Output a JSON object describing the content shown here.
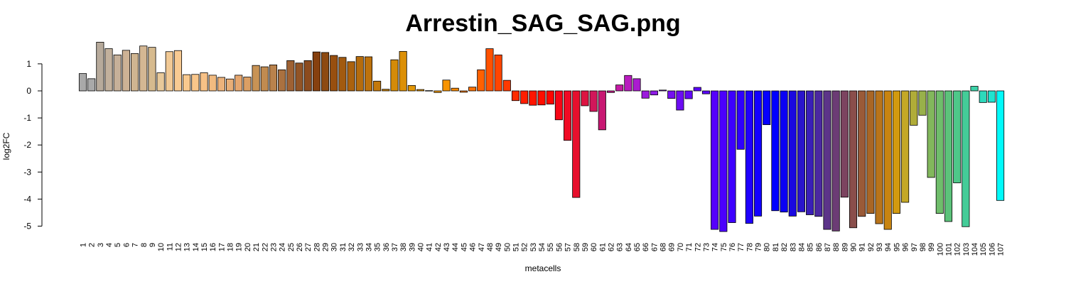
{
  "chart_data": {
    "type": "bar",
    "title": "Arrestin_SAG_SAG.png",
    "xlabel": "metacells",
    "ylabel": "log2FC",
    "ylim": [
      -5.3,
      1.9
    ],
    "yticks": [
      1,
      0,
      -1,
      -2,
      -3,
      -4,
      -5
    ],
    "ytick_labels": [
      "1",
      "0",
      "-1",
      "-2",
      "-3",
      "-4",
      "-5"
    ],
    "categories": [
      "1",
      "2",
      "3",
      "4",
      "5",
      "6",
      "7",
      "8",
      "9",
      "10",
      "11",
      "12",
      "13",
      "14",
      "15",
      "16",
      "17",
      "18",
      "19",
      "20",
      "21",
      "22",
      "23",
      "24",
      "25",
      "26",
      "27",
      "28",
      "29",
      "30",
      "31",
      "32",
      "33",
      "34",
      "35",
      "36",
      "37",
      "38",
      "39",
      "40",
      "41",
      "42",
      "43",
      "44",
      "45",
      "46",
      "47",
      "48",
      "49",
      "50",
      "51",
      "52",
      "53",
      "54",
      "55",
      "56",
      "57",
      "58",
      "59",
      "60",
      "61",
      "62",
      "63",
      "64",
      "65",
      "66",
      "67",
      "68",
      "69",
      "70",
      "71",
      "72",
      "73",
      "74",
      "75",
      "76",
      "77",
      "78",
      "79",
      "80",
      "81",
      "82",
      "83",
      "84",
      "85",
      "86",
      "87",
      "88",
      "89",
      "90",
      "91",
      "92",
      "93",
      "94",
      "95",
      "96",
      "97",
      "98",
      "99",
      "100",
      "101",
      "102",
      "103",
      "104",
      "105",
      "106",
      "107"
    ],
    "values": [
      0.64,
      0.45,
      1.8,
      1.56,
      1.33,
      1.5,
      1.38,
      1.66,
      1.61,
      0.67,
      1.45,
      1.49,
      0.6,
      0.61,
      0.67,
      0.58,
      0.5,
      0.44,
      0.58,
      0.51,
      0.94,
      0.89,
      0.96,
      0.78,
      1.12,
      1.03,
      1.12,
      1.44,
      1.42,
      1.31,
      1.24,
      1.08,
      1.27,
      1.26,
      0.36,
      0.06,
      1.15,
      1.46,
      0.2,
      0.05,
      0.01,
      -0.06,
      0.4,
      0.1,
      -0.05,
      0.14,
      0.78,
      1.56,
      1.33,
      0.39,
      -0.36,
      -0.47,
      -0.53,
      -0.52,
      -0.49,
      -1.07,
      -1.83,
      -3.94,
      -0.55,
      -0.76,
      -1.44,
      -0.06,
      0.22,
      0.57,
      0.45,
      -0.27,
      -0.15,
      0.03,
      -0.28,
      -0.71,
      -0.29,
      0.13,
      -0.11,
      -5.12,
      -5.2,
      -4.87,
      -2.16,
      -4.9,
      -4.63,
      -1.25,
      -4.43,
      -4.48,
      -4.63,
      -4.47,
      -4.58,
      -4.64,
      -5.12,
      -5.18,
      -3.93,
      -5.06,
      -4.64,
      -4.53,
      -4.91,
      -5.12,
      -4.53,
      -4.12,
      -1.27,
      -0.9,
      -3.2,
      -4.53,
      -4.83,
      -3.4,
      -5.02,
      0.17,
      -0.43,
      -0.42,
      -4.05
    ],
    "colors": [
      "#a9a9a9",
      "#a9a9a9",
      "#b7aa9b",
      "#c2b09c",
      "#c6b099",
      "#cdb295",
      "#cfb591",
      "#d4b793",
      "#d6ba8e",
      "#e8c99a",
      "#f1c995",
      "#f8ca92",
      "#f9c98e",
      "#f9c68a",
      "#f7c186",
      "#f2bb80",
      "#ecb27b",
      "#e8ae77",
      "#e5a66f",
      "#dc9f64",
      "#c89355",
      "#c18b50",
      "#b9824c",
      "#aa7140",
      "#9e6133",
      "#925426",
      "#8c4b1e",
      "#86400f",
      "#8d4a12",
      "#984f0f",
      "#a25a0f",
      "#ab620e",
      "#b56c0d",
      "#bd720c",
      "#c4790b",
      "#cd840a",
      "#d48b09",
      "#dc9007",
      "#e29706",
      "#e79905",
      "#ed9b04",
      "#f39a03",
      "#f89402",
      "#fd8a01",
      "#fe7f00",
      "#ff7000",
      "#ff6100",
      "#ff5200",
      "#ff4500",
      "#ff3a00",
      "#ff2c00",
      "#ff1e00",
      "#ff1500",
      "#ff0d00",
      "#ff0500",
      "#f70616",
      "#f00a24",
      "#e7102d",
      "#dc1442",
      "#d1175a",
      "#c81872",
      "#c91a8d",
      "#c51ba6",
      "#b91bbf",
      "#ab1bd0",
      "#9c1bdc",
      "#8e1be5",
      "#8018ec",
      "#7510f0",
      "#6c0cf3",
      "#6208f6",
      "#5b05f8",
      "#5a06fb",
      "#5500fc",
      "#4b00fd",
      "#3d00fe",
      "#2f00fe",
      "#1f00ff",
      "#1300ff",
      "#0600ff",
      "#0000ff",
      "#0a00f4",
      "#1a08e0",
      "#2a14cc",
      "#3a1fb8",
      "#4b28a1",
      "#5c3489",
      "#6c3c75",
      "#7c4460",
      "#8a4e4b",
      "#9a5a38",
      "#a96625",
      "#b9741a",
      "#c88410",
      "#d29a10",
      "#c4a826",
      "#b0ac38",
      "#98b14a",
      "#82b75c",
      "#6fbd6b",
      "#5cc27a",
      "#4ec889",
      "#44cc98",
      "#3cd2a8",
      "#2ed9bb",
      "#20e3cf",
      "#00fafa"
    ]
  }
}
